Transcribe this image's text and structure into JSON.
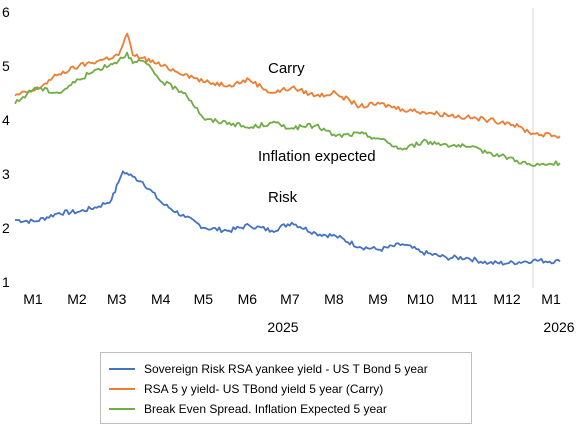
{
  "chart_data": {
    "type": "line",
    "xlabel": "",
    "ylabel": "",
    "ylim": [
      1,
      6
    ],
    "yticks": [
      "1",
      "2",
      "3",
      "4",
      "5",
      "6"
    ],
    "months": [
      "M1",
      "M2",
      "M3",
      "M4",
      "M5",
      "M6",
      "M7",
      "M8",
      "M9",
      "M10",
      "M11",
      "M12",
      "M1"
    ],
    "years": [
      "2025",
      "2026"
    ],
    "grid": false,
    "legend_position": "bottom",
    "annotations": [
      "Carry",
      "Inflation expected",
      "Risk"
    ],
    "x_start": "2025-01-01",
    "x_end": "2026-01-20",
    "series": [
      {
        "name": "Sovereign Risk RSA yankee yield - US T Bond 5 year",
        "color": "#4472c4",
        "x": [
          "2025-01-01",
          "2025-01-15",
          "2025-02-01",
          "2025-02-15",
          "2025-03-01",
          "2025-03-10",
          "2025-03-15",
          "2025-03-18",
          "2025-03-25",
          "2025-04-01",
          "2025-04-15",
          "2025-05-01",
          "2025-05-15",
          "2025-06-01",
          "2025-06-15",
          "2025-07-01",
          "2025-07-15",
          "2025-08-01",
          "2025-08-15",
          "2025-09-01",
          "2025-09-15",
          "2025-10-01",
          "2025-10-15",
          "2025-11-01",
          "2025-11-15",
          "2025-12-01",
          "2025-12-15",
          "2026-01-01",
          "2026-01-20"
        ],
        "values": [
          2.15,
          2.12,
          2.28,
          2.3,
          2.4,
          2.52,
          2.85,
          3.05,
          2.95,
          2.85,
          2.45,
          2.2,
          2.0,
          1.95,
          2.05,
          1.95,
          2.1,
          1.9,
          1.85,
          1.65,
          1.6,
          1.7,
          1.55,
          1.45,
          1.45,
          1.35,
          1.35,
          1.4,
          1.38
        ]
      },
      {
        "name": "RSA 5 y yield- US TBond yield 5 year (Carry)",
        "color": "#ed7d31",
        "x": [
          "2025-01-01",
          "2025-01-15",
          "2025-02-01",
          "2025-02-15",
          "2025-03-01",
          "2025-03-15",
          "2025-03-21",
          "2025-03-25",
          "2025-04-01",
          "2025-04-15",
          "2025-05-01",
          "2025-05-15",
          "2025-06-01",
          "2025-06-15",
          "2025-07-01",
          "2025-07-15",
          "2025-08-01",
          "2025-08-15",
          "2025-09-01",
          "2025-09-15",
          "2025-10-01",
          "2025-10-15",
          "2025-11-01",
          "2025-11-15",
          "2025-12-01",
          "2025-12-15",
          "2026-01-01",
          "2026-01-20"
        ],
        "values": [
          4.45,
          4.55,
          4.85,
          5.0,
          5.1,
          5.2,
          5.6,
          5.2,
          5.15,
          5.0,
          4.85,
          4.7,
          4.65,
          4.75,
          4.5,
          4.6,
          4.45,
          4.5,
          4.25,
          4.3,
          4.2,
          4.15,
          4.1,
          4.05,
          4.0,
          3.95,
          3.75,
          3.7
        ]
      },
      {
        "name": "Break Even Spread. Inflation Expected 5 year",
        "color": "#70ad47",
        "x": [
          "2025-01-01",
          "2025-01-15",
          "2025-02-01",
          "2025-02-15",
          "2025-03-01",
          "2025-03-15",
          "2025-03-21",
          "2025-03-25",
          "2025-04-01",
          "2025-04-15",
          "2025-05-01",
          "2025-05-15",
          "2025-06-01",
          "2025-06-15",
          "2025-07-01",
          "2025-07-15",
          "2025-08-01",
          "2025-08-15",
          "2025-09-01",
          "2025-09-15",
          "2025-10-01",
          "2025-10-15",
          "2025-11-01",
          "2025-11-15",
          "2025-12-01",
          "2025-12-15",
          "2026-01-01",
          "2026-01-20"
        ],
        "values": [
          4.3,
          4.6,
          4.5,
          4.75,
          4.95,
          5.1,
          5.25,
          5.05,
          5.1,
          4.7,
          4.5,
          4.0,
          3.95,
          3.85,
          3.95,
          3.85,
          3.9,
          3.7,
          3.75,
          3.65,
          3.45,
          3.6,
          3.55,
          3.5,
          3.4,
          3.3,
          3.15,
          3.2
        ]
      }
    ]
  }
}
